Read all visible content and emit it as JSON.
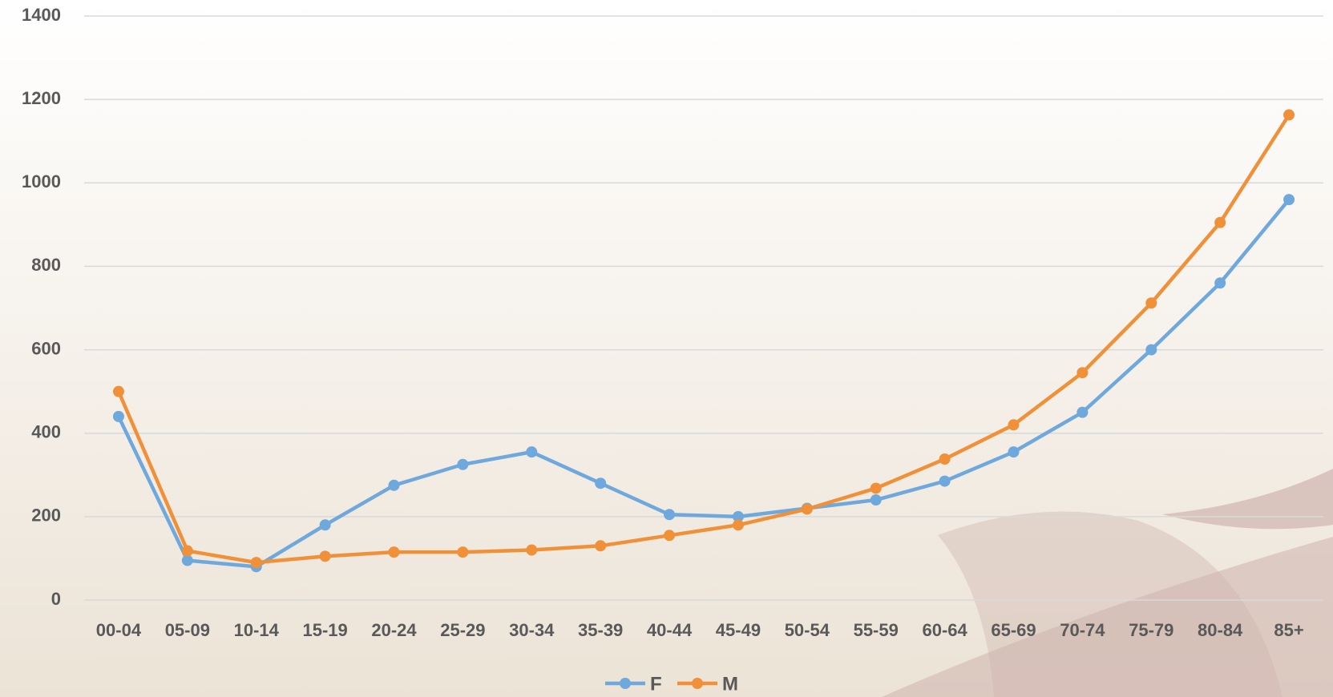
{
  "chart_data": {
    "type": "line",
    "categories": [
      "00-04",
      "05-09",
      "10-14",
      "15-19",
      "20-24",
      "25-29",
      "30-34",
      "35-39",
      "40-44",
      "45-49",
      "50-54",
      "55-59",
      "60-64",
      "65-69",
      "70-74",
      "75-79",
      "80-84",
      "85+"
    ],
    "series": [
      {
        "name": "F",
        "color": "#6fa8dc",
        "values": [
          440,
          95,
          80,
          180,
          275,
          325,
          355,
          280,
          205,
          200,
          220,
          240,
          285,
          355,
          450,
          600,
          760,
          960
        ]
      },
      {
        "name": "M",
        "color": "#f0913a",
        "values": [
          500,
          118,
          90,
          105,
          115,
          115,
          120,
          130,
          155,
          180,
          218,
          268,
          338,
          420,
          545,
          712,
          905,
          1163
        ]
      }
    ],
    "ylim": [
      0,
      1400
    ],
    "yticks": [
      0,
      200,
      400,
      600,
      800,
      1000,
      1200,
      1400
    ],
    "grid": true,
    "legend": "bottom"
  }
}
